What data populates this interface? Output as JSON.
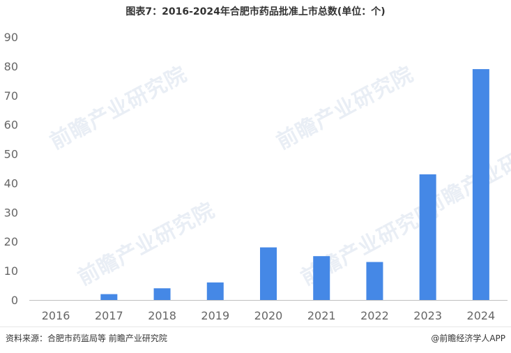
{
  "title": "图表7：2016-2024年合肥市药品批准上市总数(单位：个)",
  "source": "资料来源：合肥市药监局等 前瞻产业研究院",
  "brand": "@前瞻经济学人APP",
  "watermark_text": "前瞻产业研究院",
  "colors": {
    "bar": "#4588e6",
    "axis": "#bfbfbf",
    "tick_text": "#666666"
  },
  "chart_data": {
    "type": "bar",
    "title": "图表7：2016-2024年合肥市药品批准上市总数(单位：个)",
    "categories": [
      "2016",
      "2017",
      "2018",
      "2019",
      "2020",
      "2021",
      "2022",
      "2023",
      "2024"
    ],
    "values": [
      0,
      2,
      4,
      6,
      18,
      15,
      13,
      43,
      79
    ],
    "ylim": [
      0,
      90
    ],
    "yticks": [
      0,
      10,
      20,
      30,
      40,
      50,
      60,
      70,
      80,
      90
    ],
    "xlabel": "",
    "ylabel": "",
    "grid": false,
    "legend": "none"
  }
}
